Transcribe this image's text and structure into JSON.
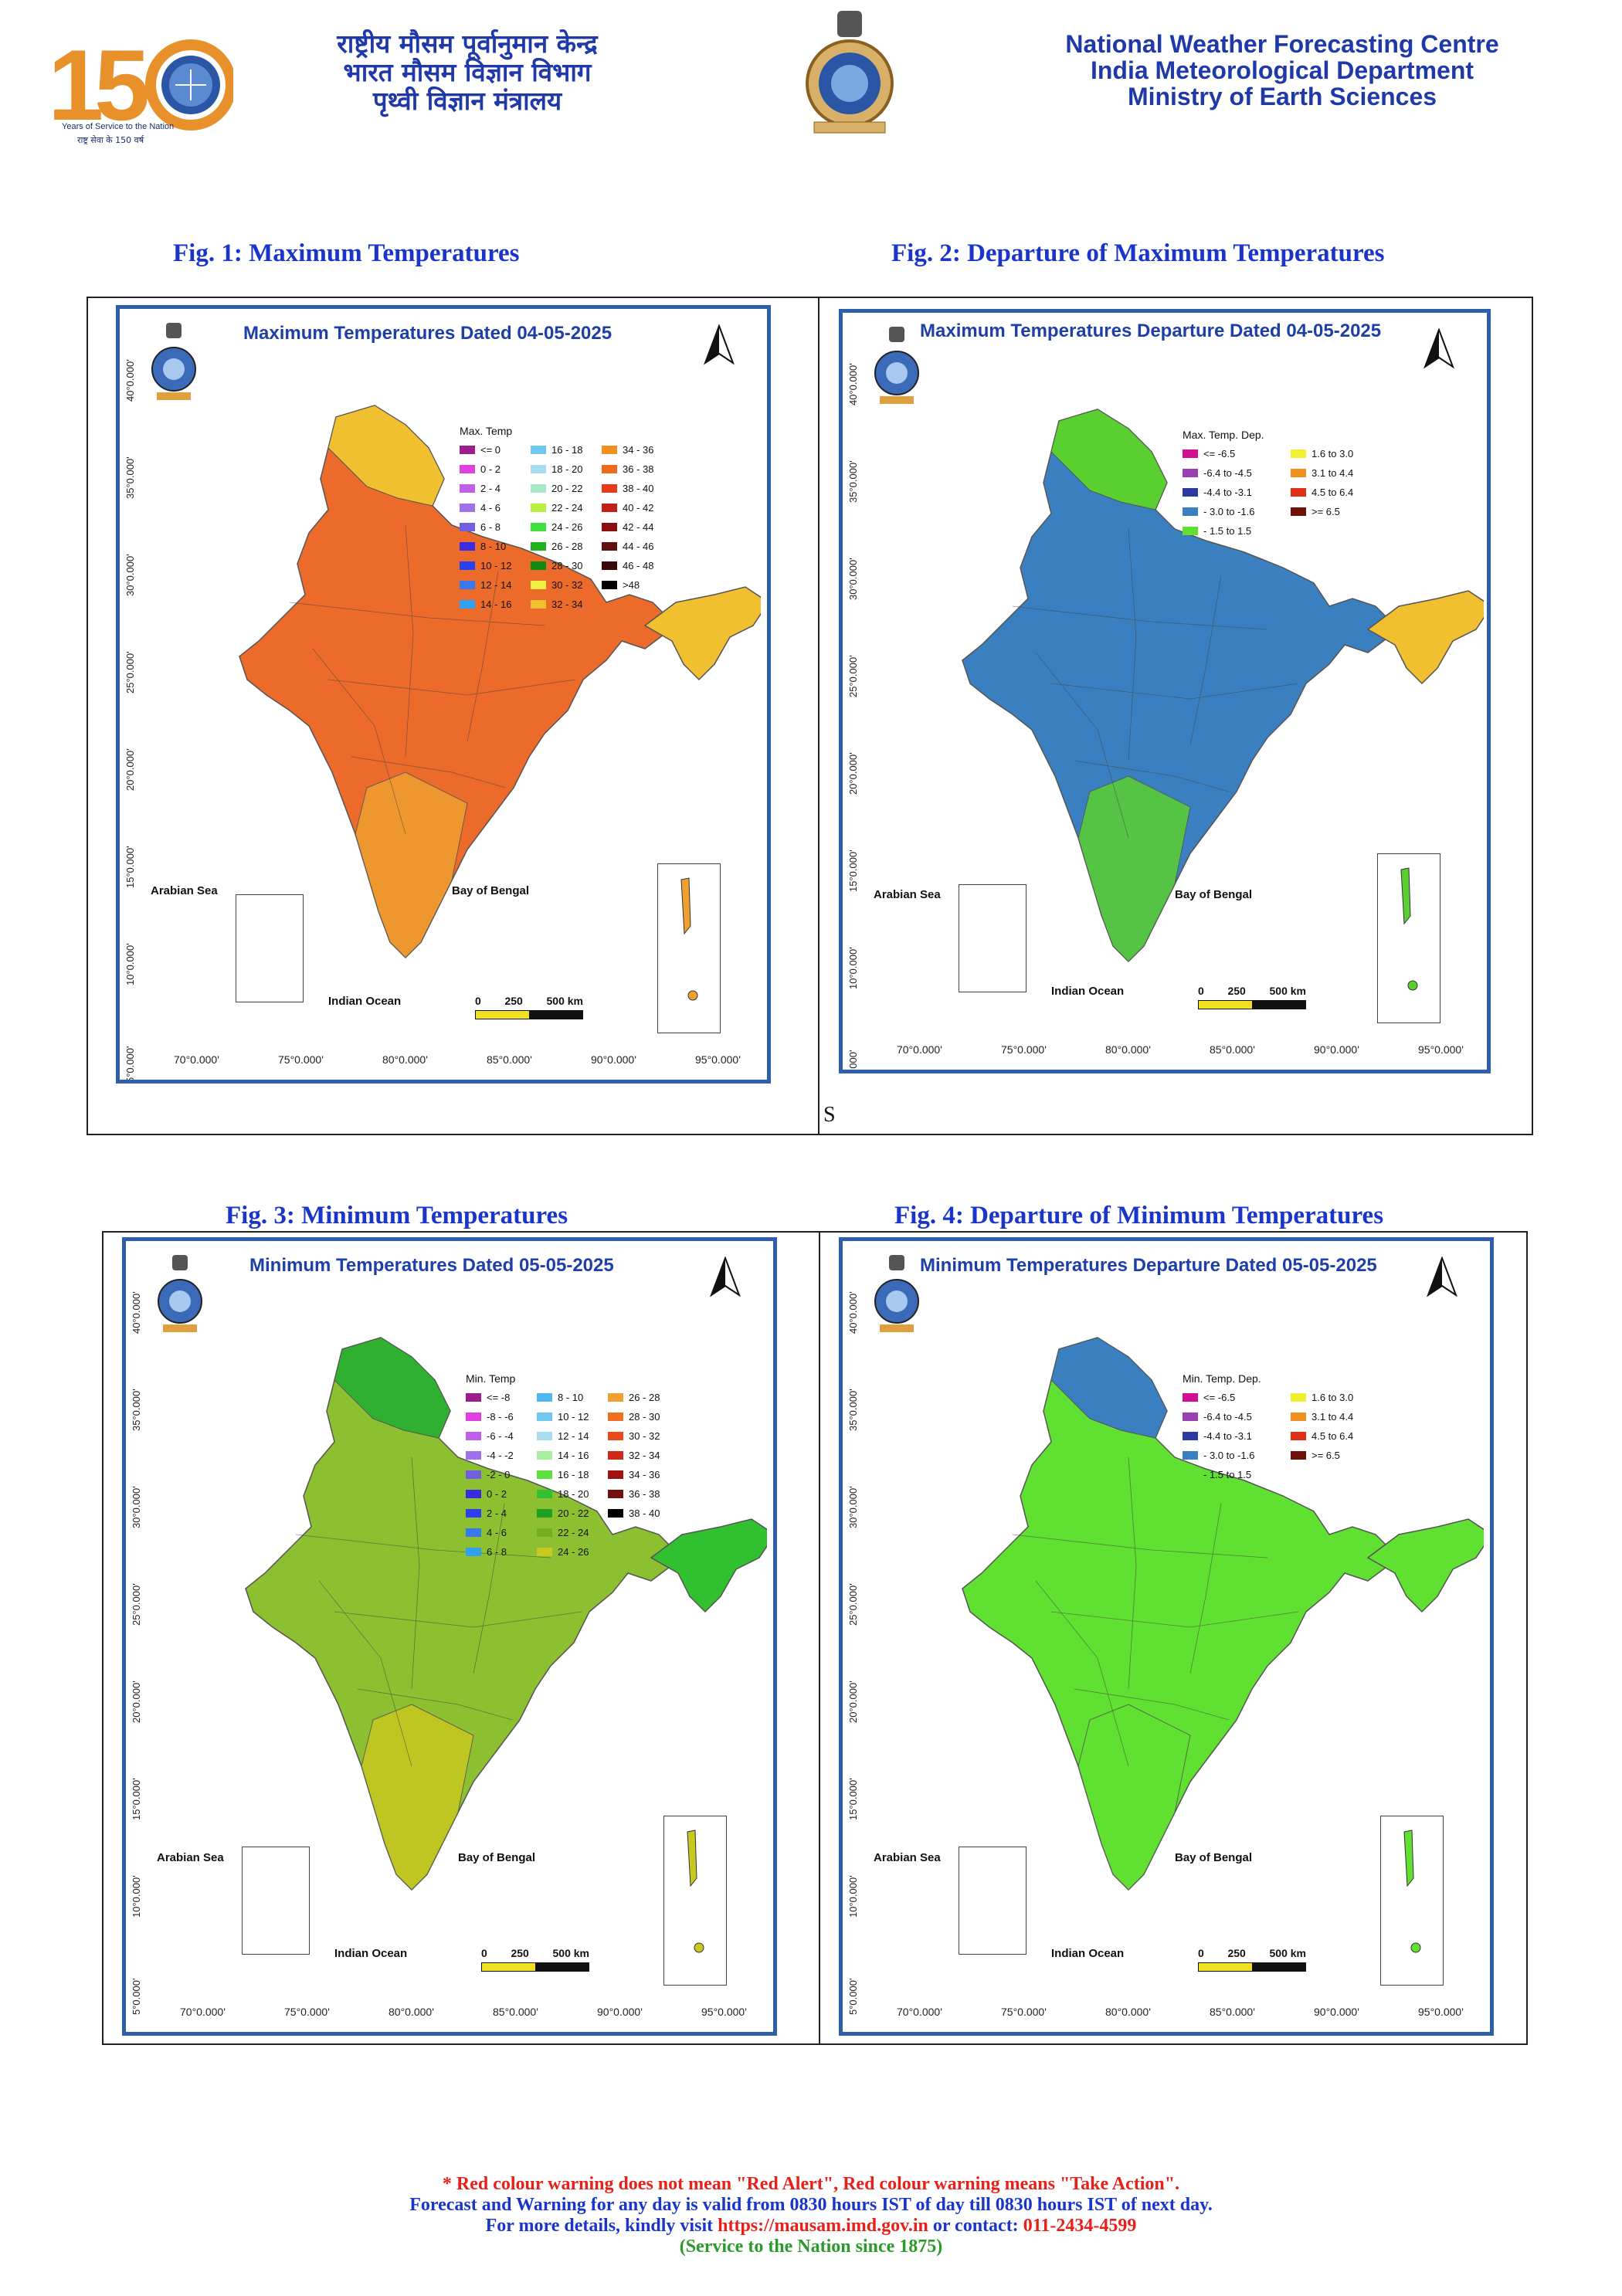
{
  "header": {
    "logo_150": {
      "number": "150",
      "tagline": "Years of Service to the Nation",
      "tagline_hi": "राष्ट्र सेवा के 150 वर्ष"
    },
    "hindi_lines": [
      "राष्ट्रीय मौसम पूर्वानुमान केन्द्र",
      "भारत मौसम विज्ञान विभाग",
      "पृथ्वी विज्ञान मंत्रालय"
    ],
    "english_lines": [
      "National Weather Forecasting Centre",
      "India Meteorological Department",
      "Ministry of Earth Sciences"
    ]
  },
  "figures": [
    {
      "caption": "Fig. 1: Maximum Temperatures",
      "map_title": "Maximum Temperatures  Dated 04-05-2025",
      "legend_title": "Max. Temp",
      "legend": [
        {
          "label": "<= 0",
          "color": "#9b1e8a"
        },
        {
          "label": "0 - 2",
          "color": "#e040e0"
        },
        {
          "label": "2 - 4",
          "color": "#c060e8"
        },
        {
          "label": "4 - 6",
          "color": "#a070e8"
        },
        {
          "label": "6 - 8",
          "color": "#7060e0"
        },
        {
          "label": "8 - 10",
          "color": "#3a2ae0"
        },
        {
          "label": "10 - 12",
          "color": "#2a40f0"
        },
        {
          "label": "12 - 14",
          "color": "#3a78f0"
        },
        {
          "label": "14 - 16",
          "color": "#30a0f0"
        },
        {
          "label": "16 - 18",
          "color": "#6fc8f0"
        },
        {
          "label": "18 - 20",
          "color": "#a8dcf0"
        },
        {
          "label": "20 - 22",
          "color": "#a8e8c8"
        },
        {
          "label": "22 - 24",
          "color": "#b8f040"
        },
        {
          "label": "24 - 26",
          "color": "#40e040"
        },
        {
          "label": "26 - 28",
          "color": "#20b020"
        },
        {
          "label": "28 - 30",
          "color": "#128a12"
        },
        {
          "label": "30 - 32",
          "color": "#f0f040"
        },
        {
          "label": "32 - 34",
          "color": "#f0c030"
        },
        {
          "label": "34 - 36",
          "color": "#f0901e"
        },
        {
          "label": "36 - 38",
          "color": "#f06a1e"
        },
        {
          "label": "38 - 40",
          "color": "#e83a1a"
        },
        {
          "label": "40 - 42",
          "color": "#c02018"
        },
        {
          "label": "42 - 44",
          "color": "#8a1010"
        },
        {
          "label": "44 - 46",
          "color": "#601010"
        },
        {
          "label": "46 - 48",
          "color": "#3a0808"
        },
        {
          "label": ">48",
          "color": "#000000"
        }
      ],
      "legend_cols": 3,
      "fill_main": "#ec6a2a",
      "fill_north": "#f0c030",
      "fill_ne": "#f0c030",
      "fill_south": "#f0a030",
      "footnote": "S"
    },
    {
      "caption": "Fig. 2: Departure of Maximum Temperatures",
      "map_title": "Maximum Temperatures Departure Dated 04-05-2025",
      "legend_title": "Max. Temp. Dep.",
      "legend": [
        {
          "label": "<= -6.5",
          "color": "#d01090"
        },
        {
          "label": "-6.4 to -4.5",
          "color": "#9a40b0"
        },
        {
          "label": "-4.4 to -3.1",
          "color": "#2a3aa0"
        },
        {
          "label": "- 3.0 to -1.6",
          "color": "#3a80c0"
        },
        {
          "label": "- 1.5 to 1.5",
          "color": "#60e030"
        },
        {
          "label": "1.6 to  3.0",
          "color": "#f0f030"
        },
        {
          "label": "3.1 to 4.4",
          "color": "#f09020"
        },
        {
          "label": "4.5 to 6.4",
          "color": "#e03018"
        },
        {
          "label": ">= 6.5",
          "color": "#701008"
        }
      ],
      "legend_cols": 2,
      "fill_main": "#3a80c0",
      "fill_north": "#5ad030",
      "fill_ne": "#f0c030",
      "fill_south": "#5ad030"
    },
    {
      "caption": "Fig. 3: Minimum Temperatures",
      "map_title": "Minimum Temperatures  Dated 05-05-2025",
      "legend_title": "Min. Temp",
      "legend": [
        {
          "label": "<= -8",
          "color": "#9b1e8a"
        },
        {
          "label": "-8 - -6",
          "color": "#e040e0"
        },
        {
          "label": "-6 - -4",
          "color": "#c060e8"
        },
        {
          "label": "-4 - -2",
          "color": "#a070e8"
        },
        {
          "label": "-2 - 0",
          "color": "#7060e0"
        },
        {
          "label": "0 - 2",
          "color": "#3a2ae0"
        },
        {
          "label": "2 - 4",
          "color": "#2a40f0"
        },
        {
          "label": "4 - 6",
          "color": "#3a78f0"
        },
        {
          "label": "6 - 8",
          "color": "#30a0f0"
        },
        {
          "label": "8 - 10",
          "color": "#50b8f0"
        },
        {
          "label": "10 - 12",
          "color": "#6fc8f0"
        },
        {
          "label": "12 - 14",
          "color": "#a8dcf0"
        },
        {
          "label": "14 - 16",
          "color": "#a8f0a0"
        },
        {
          "label": "16 - 18",
          "color": "#60e040"
        },
        {
          "label": "18 - 20",
          "color": "#30c030"
        },
        {
          "label": "20 - 22",
          "color": "#20a020"
        },
        {
          "label": "22 - 24",
          "color": "#70b020"
        },
        {
          "label": "24 - 26",
          "color": "#c8c820"
        },
        {
          "label": "26 - 28",
          "color": "#f0a030"
        },
        {
          "label": "28 - 30",
          "color": "#f07020"
        },
        {
          "label": "30 - 32",
          "color": "#e84a1a"
        },
        {
          "label": "32 - 34",
          "color": "#d02818"
        },
        {
          "label": "34 - 36",
          "color": "#a01010"
        },
        {
          "label": "36 - 38",
          "color": "#701010"
        },
        {
          "label": "38 - 40",
          "color": "#000000"
        }
      ],
      "legend_cols": 3,
      "fill_main": "#8cc030",
      "fill_north": "#30b030",
      "fill_ne": "#30c030",
      "fill_south": "#c8c820"
    },
    {
      "caption": "Fig. 4: Departure of Minimum Temperatures",
      "map_title": "Minimum Temperatures Departure Dated 05-05-2025",
      "legend_title": "Min. Temp. Dep.",
      "legend": [
        {
          "label": "<= -6.5",
          "color": "#d01090"
        },
        {
          "label": "-6.4 to -4.5",
          "color": "#9a40b0"
        },
        {
          "label": "-4.4 to -3.1",
          "color": "#2a3aa0"
        },
        {
          "label": "- 3.0 to -1.6",
          "color": "#3a80c0"
        },
        {
          "label": "- 1.5 to 1.5",
          "color": "#60e030"
        },
        {
          "label": "1.6 to  3.0",
          "color": "#f0f030"
        },
        {
          "label": "3.1 to 4.4",
          "color": "#f09020"
        },
        {
          "label": "4.5 to 6.4",
          "color": "#e03018"
        },
        {
          "label": ">= 6.5",
          "color": "#701008"
        }
      ],
      "legend_cols": 2,
      "fill_main": "#60e030",
      "fill_north": "#3a80c0",
      "fill_ne": "#60e030",
      "fill_south": "#60e030"
    }
  ],
  "map_labels": {
    "arabian_sea": "Arabian Sea",
    "bay_of_bengal": "Bay of Bengal",
    "indian_ocean": "Indian Ocean",
    "scale": [
      "0",
      "250",
      "500 km"
    ],
    "lon_ticks": [
      "70°0.000'",
      "75°0.000'",
      "80°0.000'",
      "85°0.000'",
      "90°0.000'",
      "95°0.000'"
    ],
    "lat_ticks": [
      "40°0.000'",
      "35°0.000'",
      "30°0.000'",
      "25°0.000'",
      "20°0.000'",
      "15°0.000'",
      "10°0.000'",
      "5°0.000'"
    ]
  },
  "footer": {
    "line1": "* Red colour warning does not mean \"Red Alert\", Red colour warning means \"Take Action\".",
    "line2": "Forecast and Warning for any day is valid from 0830 hours IST of day till 0830 hours IST of next day.",
    "line3_prefix": "For more details, kindly visit",
    "line3_url": "https://mausam.imd.gov.in",
    "line3_mid": "or contact:",
    "line3_phone": "011-2434-4599",
    "line4": "(Service to the Nation since 1875)",
    "colors": {
      "red": "#e8201a",
      "blue": "#1a35c9",
      "green": "#2a9a2a"
    }
  }
}
